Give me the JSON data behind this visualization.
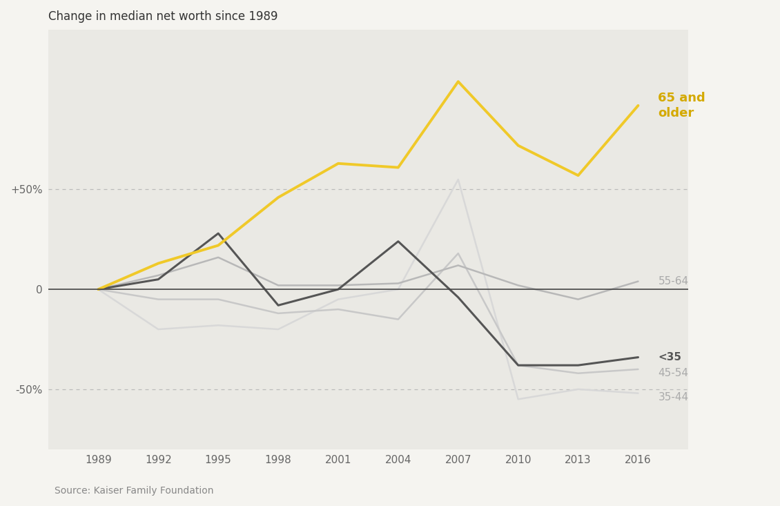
{
  "title": "Change in median net worth since 1989",
  "source": "Source: Kaiser Family Foundation",
  "years": [
    1989,
    1992,
    1995,
    1998,
    2001,
    2004,
    2007,
    2010,
    2013,
    2016
  ],
  "series": {
    "65 and older": {
      "values": [
        0,
        13,
        22,
        46,
        63,
        61,
        104,
        72,
        57,
        92
      ],
      "color": "#f0c929",
      "linewidth": 2.8,
      "zorder": 5
    },
    "55-64": {
      "values": [
        0,
        7,
        16,
        2,
        2,
        3,
        12,
        2,
        -5,
        4
      ],
      "color": "#b8b8b8",
      "linewidth": 1.8,
      "zorder": 3
    },
    "<35": {
      "values": [
        0,
        5,
        28,
        -8,
        0,
        24,
        -4,
        -38,
        -38,
        -34
      ],
      "color": "#555555",
      "linewidth": 2.2,
      "zorder": 4
    },
    "45-54": {
      "values": [
        0,
        -5,
        -5,
        -12,
        -10,
        -15,
        18,
        -38,
        -42,
        -40
      ],
      "color": "#c8c8c8",
      "linewidth": 1.8,
      "zorder": 2
    },
    "35-44": {
      "values": [
        0,
        -20,
        -18,
        -20,
        -5,
        0,
        55,
        -55,
        -50,
        -52
      ],
      "color": "#d8d8d8",
      "linewidth": 1.8,
      "zorder": 1
    }
  },
  "ylim": [
    -80,
    130
  ],
  "yticks": [
    -50,
    0,
    50
  ],
  "ytick_labels": [
    "-50%",
    "0",
    "+50%"
  ],
  "fig_bg_color": "#f5f4f0",
  "plot_bg_color": "#eae9e4",
  "label_styles": {
    "65 and older": {
      "color": "#d4a900",
      "fontsize": 13,
      "fontweight": "bold",
      "multiline": true
    },
    "55-64": {
      "color": "#aaaaaa",
      "fontsize": 11,
      "fontweight": "normal",
      "multiline": false
    },
    "<35": {
      "color": "#555555",
      "fontsize": 11,
      "fontweight": "bold",
      "multiline": false
    },
    "45-54": {
      "color": "#aaaaaa",
      "fontsize": 11,
      "fontweight": "normal",
      "multiline": false
    },
    "35-44": {
      "color": "#aaaaaa",
      "fontsize": 11,
      "fontweight": "normal",
      "multiline": false
    }
  },
  "label_positions": {
    "65 and older": {
      "y": 92
    },
    "55-64": {
      "y": 4
    },
    "<35": {
      "y": -34
    },
    "45-54": {
      "y": -42
    },
    "35-44": {
      "y": -54
    }
  }
}
